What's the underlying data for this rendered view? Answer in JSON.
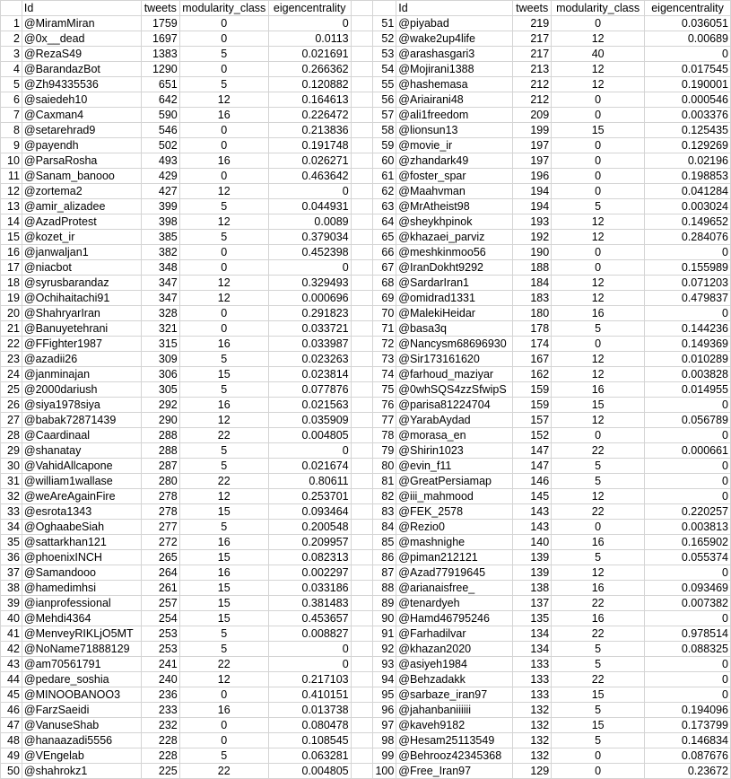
{
  "headers": {
    "id": "Id",
    "tweets": "tweets",
    "modularity": "modularity_class",
    "eigen": "eigencentrality"
  },
  "left": [
    [
      "1",
      "@MiramMiran",
      "1759",
      "0",
      "0"
    ],
    [
      "2",
      "@0x__dead",
      "1697",
      "0",
      "0.0113"
    ],
    [
      "3",
      "@RezaS49",
      "1383",
      "5",
      "0.021691"
    ],
    [
      "4",
      "@BarandazBot",
      "1290",
      "0",
      "0.266362"
    ],
    [
      "5",
      "@Zh94335536",
      "651",
      "5",
      "0.120882"
    ],
    [
      "6",
      "@saiedeh10",
      "642",
      "12",
      "0.164613"
    ],
    [
      "7",
      "@Caxman4",
      "590",
      "16",
      "0.226472"
    ],
    [
      "8",
      "@setarehrad9",
      "546",
      "0",
      "0.213836"
    ],
    [
      "9",
      "@payendh",
      "502",
      "0",
      "0.191748"
    ],
    [
      "10",
      "@ParsaRosha",
      "493",
      "16",
      "0.026271"
    ],
    [
      "11",
      "@Sanam_banooo",
      "429",
      "0",
      "0.463642"
    ],
    [
      "12",
      "@zortema2",
      "427",
      "12",
      "0"
    ],
    [
      "13",
      "@amir_alizadee",
      "399",
      "5",
      "0.044931"
    ],
    [
      "14",
      "@AzadProtest",
      "398",
      "12",
      "0.0089"
    ],
    [
      "15",
      "@kozet_ir",
      "385",
      "5",
      "0.379034"
    ],
    [
      "16",
      "@janwaljan1",
      "382",
      "0",
      "0.452398"
    ],
    [
      "17",
      "@niacbot",
      "348",
      "0",
      "0"
    ],
    [
      "18",
      "@syrusbarandaz",
      "347",
      "12",
      "0.329493"
    ],
    [
      "19",
      "@Ochihaitachi91",
      "347",
      "12",
      "0.000696"
    ],
    [
      "20",
      "@ShahryarIran",
      "328",
      "0",
      "0.291823"
    ],
    [
      "21",
      "@Banuyetehrani",
      "321",
      "0",
      "0.033721"
    ],
    [
      "22",
      "@FFighter1987",
      "315",
      "16",
      "0.033987"
    ],
    [
      "23",
      "@azadii26",
      "309",
      "5",
      "0.023263"
    ],
    [
      "24",
      "@janminajan",
      "306",
      "15",
      "0.023814"
    ],
    [
      "25",
      "@2000dariush",
      "305",
      "5",
      "0.077876"
    ],
    [
      "26",
      "@siya1978siya",
      "292",
      "16",
      "0.021563"
    ],
    [
      "27",
      "@babak72871439",
      "290",
      "12",
      "0.035909"
    ],
    [
      "28",
      "@Caardinaal",
      "288",
      "22",
      "0.004805"
    ],
    [
      "29",
      "@shanatay",
      "288",
      "5",
      "0"
    ],
    [
      "30",
      "@VahidAllcapone",
      "287",
      "5",
      "0.021674"
    ],
    [
      "31",
      "@william1wallase",
      "280",
      "22",
      "0.80611"
    ],
    [
      "32",
      "@weAreAgainFire",
      "278",
      "12",
      "0.253701"
    ],
    [
      "33",
      "@esrota1343",
      "278",
      "15",
      "0.093464"
    ],
    [
      "34",
      "@OghaabeSiah",
      "277",
      "5",
      "0.200548"
    ],
    [
      "35",
      "@sattarkhan121",
      "272",
      "16",
      "0.209957"
    ],
    [
      "36",
      "@phoenixINCH",
      "265",
      "15",
      "0.082313"
    ],
    [
      "37",
      "@Samandooo",
      "264",
      "16",
      "0.002297"
    ],
    [
      "38",
      "@hamedimhsi",
      "261",
      "15",
      "0.033186"
    ],
    [
      "39",
      "@ianprofessional",
      "257",
      "15",
      "0.381483"
    ],
    [
      "40",
      "@Mehdi4364",
      "254",
      "15",
      "0.453657"
    ],
    [
      "41",
      "@MenveyRIKLjO5MT",
      "253",
      "5",
      "0.008827"
    ],
    [
      "42",
      "@NoName71888129",
      "253",
      "5",
      "0"
    ],
    [
      "43",
      "@am70561791",
      "241",
      "22",
      "0"
    ],
    [
      "44",
      "@pedare_soshia",
      "240",
      "12",
      "0.217103"
    ],
    [
      "45",
      "@MINOOBANOO3",
      "236",
      "0",
      "0.410151"
    ],
    [
      "46",
      "@FarzSaeidi",
      "233",
      "16",
      "0.013738"
    ],
    [
      "47",
      "@VanuseShab",
      "232",
      "0",
      "0.080478"
    ],
    [
      "48",
      "@hanaazadi5556",
      "228",
      "0",
      "0.108545"
    ],
    [
      "49",
      "@VEngelab",
      "228",
      "5",
      "0.063281"
    ],
    [
      "50",
      "@shahrokz1",
      "225",
      "22",
      "0.004805"
    ]
  ],
  "right": [
    [
      "51",
      "@piyabad",
      "219",
      "0",
      "0.036051"
    ],
    [
      "52",
      "@wake2up4life",
      "217",
      "12",
      "0.00689"
    ],
    [
      "53",
      "@arashasgari3",
      "217",
      "40",
      "0"
    ],
    [
      "54",
      "@Mojirani1388",
      "213",
      "12",
      "0.017545"
    ],
    [
      "55",
      "@hashemasa",
      "212",
      "12",
      "0.190001"
    ],
    [
      "56",
      "@Ariairani48",
      "212",
      "0",
      "0.000546"
    ],
    [
      "57",
      "@ali1freedom",
      "209",
      "0",
      "0.003376"
    ],
    [
      "58",
      "@lionsun13",
      "199",
      "15",
      "0.125435"
    ],
    [
      "59",
      "@movie_ir",
      "197",
      "0",
      "0.129269"
    ],
    [
      "60",
      "@zhandark49",
      "197",
      "0",
      "0.02196"
    ],
    [
      "61",
      "@foster_spar",
      "196",
      "0",
      "0.198853"
    ],
    [
      "62",
      "@Maahvman",
      "194",
      "0",
      "0.041284"
    ],
    [
      "63",
      "@MrAtheist98",
      "194",
      "5",
      "0.003024"
    ],
    [
      "64",
      "@sheykhpinok",
      "193",
      "12",
      "0.149652"
    ],
    [
      "65",
      "@khazaei_parviz",
      "192",
      "12",
      "0.284076"
    ],
    [
      "66",
      "@meshkinmoo56",
      "190",
      "0",
      "0"
    ],
    [
      "67",
      "@IranDokht9292",
      "188",
      "0",
      "0.155989"
    ],
    [
      "68",
      "@SardarIran1",
      "184",
      "12",
      "0.071203"
    ],
    [
      "69",
      "@omidrad1331",
      "183",
      "12",
      "0.479837"
    ],
    [
      "70",
      "@MalekiHeidar",
      "180",
      "16",
      "0"
    ],
    [
      "71",
      "@basa3q",
      "178",
      "5",
      "0.144236"
    ],
    [
      "72",
      "@Nancysm68696930",
      "174",
      "0",
      "0.149369"
    ],
    [
      "73",
      "@Sir173161620",
      "167",
      "12",
      "0.010289"
    ],
    [
      "74",
      "@farhoud_maziyar",
      "162",
      "12",
      "0.003828"
    ],
    [
      "75",
      "@0whSQS4zzSfwipS",
      "159",
      "16",
      "0.014955"
    ],
    [
      "76",
      "@parisa81224704",
      "159",
      "15",
      "0"
    ],
    [
      "77",
      "@YarabAydad",
      "157",
      "12",
      "0.056789"
    ],
    [
      "78",
      "@morasa_en",
      "152",
      "0",
      "0"
    ],
    [
      "79",
      "@Shirin1023",
      "147",
      "22",
      "0.000661"
    ],
    [
      "80",
      "@evin_f11",
      "147",
      "5",
      "0"
    ],
    [
      "81",
      "@GreatPersiamap",
      "146",
      "5",
      "0"
    ],
    [
      "82",
      "@iii_mahmood",
      "145",
      "12",
      "0"
    ],
    [
      "83",
      "@FEK_2578",
      "143",
      "22",
      "0.220257"
    ],
    [
      "84",
      "@Rezio0",
      "143",
      "0",
      "0.003813"
    ],
    [
      "85",
      "@mashnighe",
      "140",
      "16",
      "0.165902"
    ],
    [
      "86",
      "@piman212121",
      "139",
      "5",
      "0.055374"
    ],
    [
      "87",
      "@Azad77919645",
      "139",
      "12",
      "0"
    ],
    [
      "88",
      "@arianaisfree_",
      "138",
      "16",
      "0.093469"
    ],
    [
      "89",
      "@tenardyeh",
      "137",
      "22",
      "0.007382"
    ],
    [
      "90",
      "@Hamd46795246",
      "135",
      "16",
      "0"
    ],
    [
      "91",
      "@Farhadilvar",
      "134",
      "22",
      "0.978514"
    ],
    [
      "92",
      "@khazan2020",
      "134",
      "5",
      "0.088325"
    ],
    [
      "93",
      "@asiyeh1984",
      "133",
      "5",
      "0"
    ],
    [
      "94",
      "@Behzadakk",
      "133",
      "22",
      "0"
    ],
    [
      "95",
      "@sarbaze_iran97",
      "133",
      "15",
      "0"
    ],
    [
      "96",
      "@jahanbaniiiiii",
      "132",
      "5",
      "0.194096"
    ],
    [
      "97",
      "@kaveh9182",
      "132",
      "15",
      "0.173799"
    ],
    [
      "98",
      "@Hesam25113549",
      "132",
      "5",
      "0.146834"
    ],
    [
      "99",
      "@Behrooz42345368",
      "132",
      "0",
      "0.087676"
    ],
    [
      "100",
      "@Free_Iran97",
      "129",
      "0",
      "0.23672"
    ]
  ]
}
